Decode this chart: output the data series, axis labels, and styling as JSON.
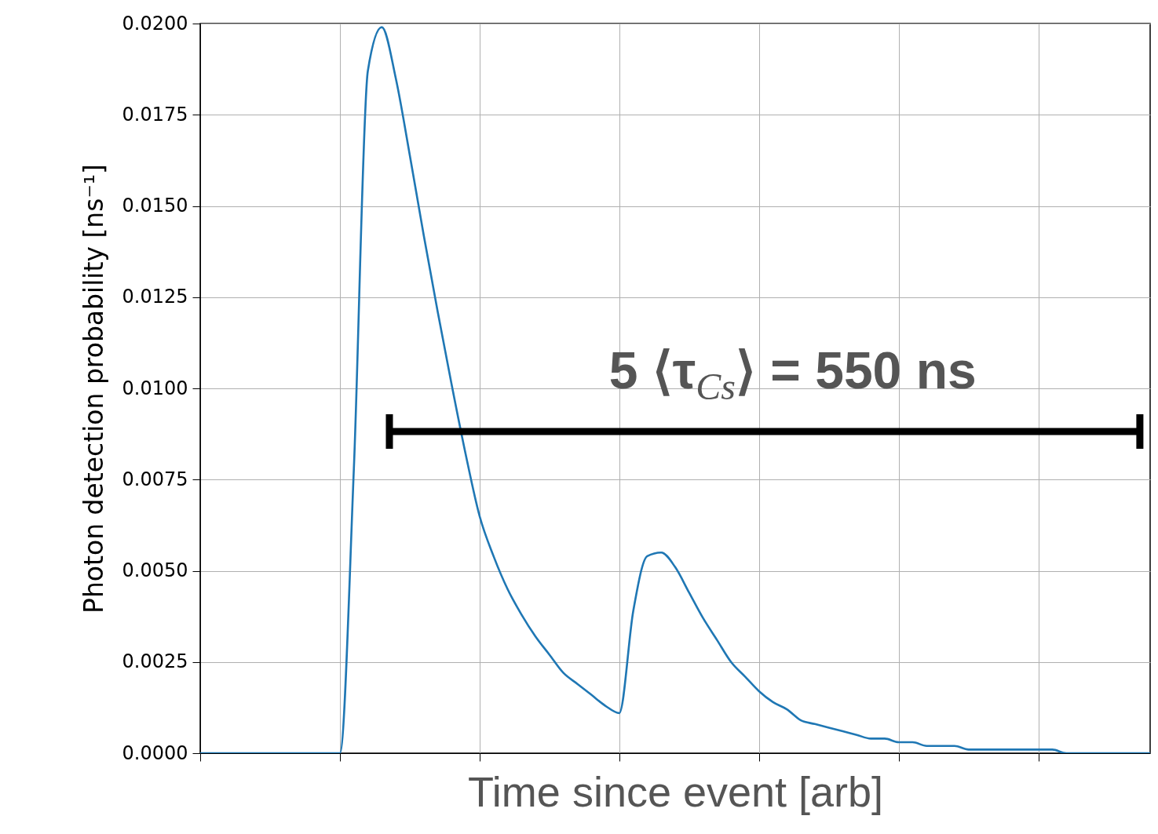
{
  "chart_data": {
    "type": "line",
    "xlabel": "Time since event [arb]",
    "ylabel": "Photon detection probability [ns⁻¹]",
    "categories": [
      null,
      null,
      null,
      null,
      null,
      null,
      null,
      null,
      null,
      null,
      null,
      null,
      null,
      null,
      null,
      null,
      null,
      null,
      null,
      null,
      null,
      null,
      null,
      null,
      null,
      null,
      null,
      null,
      null,
      null,
      null,
      null,
      null,
      null,
      null,
      null,
      null,
      null,
      null,
      null,
      null,
      null,
      null,
      null,
      null,
      null,
      null,
      null,
      null,
      null,
      null,
      null,
      null,
      null,
      null,
      null,
      null,
      null,
      null,
      null,
      null,
      null,
      null,
      null,
      null,
      null,
      null,
      null,
      null
    ],
    "series": [
      {
        "color": "#1f77b4",
        "values": [
          0,
          0,
          0,
          0,
          0,
          0,
          0,
          0,
          0,
          0,
          0,
          0.0078,
          0.0187,
          0.0199,
          0.0185,
          0.0164,
          0.0142,
          0.0121,
          0.0101,
          0.0082,
          0.0065,
          0.0054,
          0.0045,
          0.0038,
          0.0032,
          0.0027,
          0.0022,
          0.0019,
          0.0016,
          0.0013,
          0.0011,
          0.0039,
          0.0054,
          0.0055,
          0.0051,
          0.0044,
          0.0037,
          0.0031,
          0.0025,
          0.0021,
          0.0017,
          0.0014,
          0.0012,
          0.0009,
          0.0008,
          0.0007,
          0.0006,
          0.0005,
          0.0004,
          0.0004,
          0.0003,
          0.0003,
          0.0002,
          0.0002,
          0.0002,
          0.0001,
          0.0001,
          0.0001,
          0.0001,
          0.0001,
          0.0001,
          0.0001,
          0,
          0,
          0,
          0,
          0,
          0,
          0
        ]
      }
    ],
    "ylim": [
      0,
      0.02
    ],
    "yticks": [
      {
        "value": 0,
        "label": "0.0000"
      },
      {
        "value": 0.0025,
        "label": "0.0025"
      },
      {
        "value": 0.005,
        "label": "0.0050"
      },
      {
        "value": 0.0075,
        "label": "0.0075"
      },
      {
        "value": 0.01,
        "label": "0.0100"
      },
      {
        "value": 0.0125,
        "label": "0.0125"
      },
      {
        "value": 0.015,
        "label": "0.0150"
      },
      {
        "value": 0.0175,
        "label": "0.0175"
      },
      {
        "value": 0.02,
        "label": "0.0200"
      }
    ],
    "tick_labels": "y",
    "grid": true,
    "marker": "none",
    "line_style": "solid",
    "annotations": [
      "5 ⟨τ$_{Cs}$⟩ = 550 ns"
    ]
  }
}
